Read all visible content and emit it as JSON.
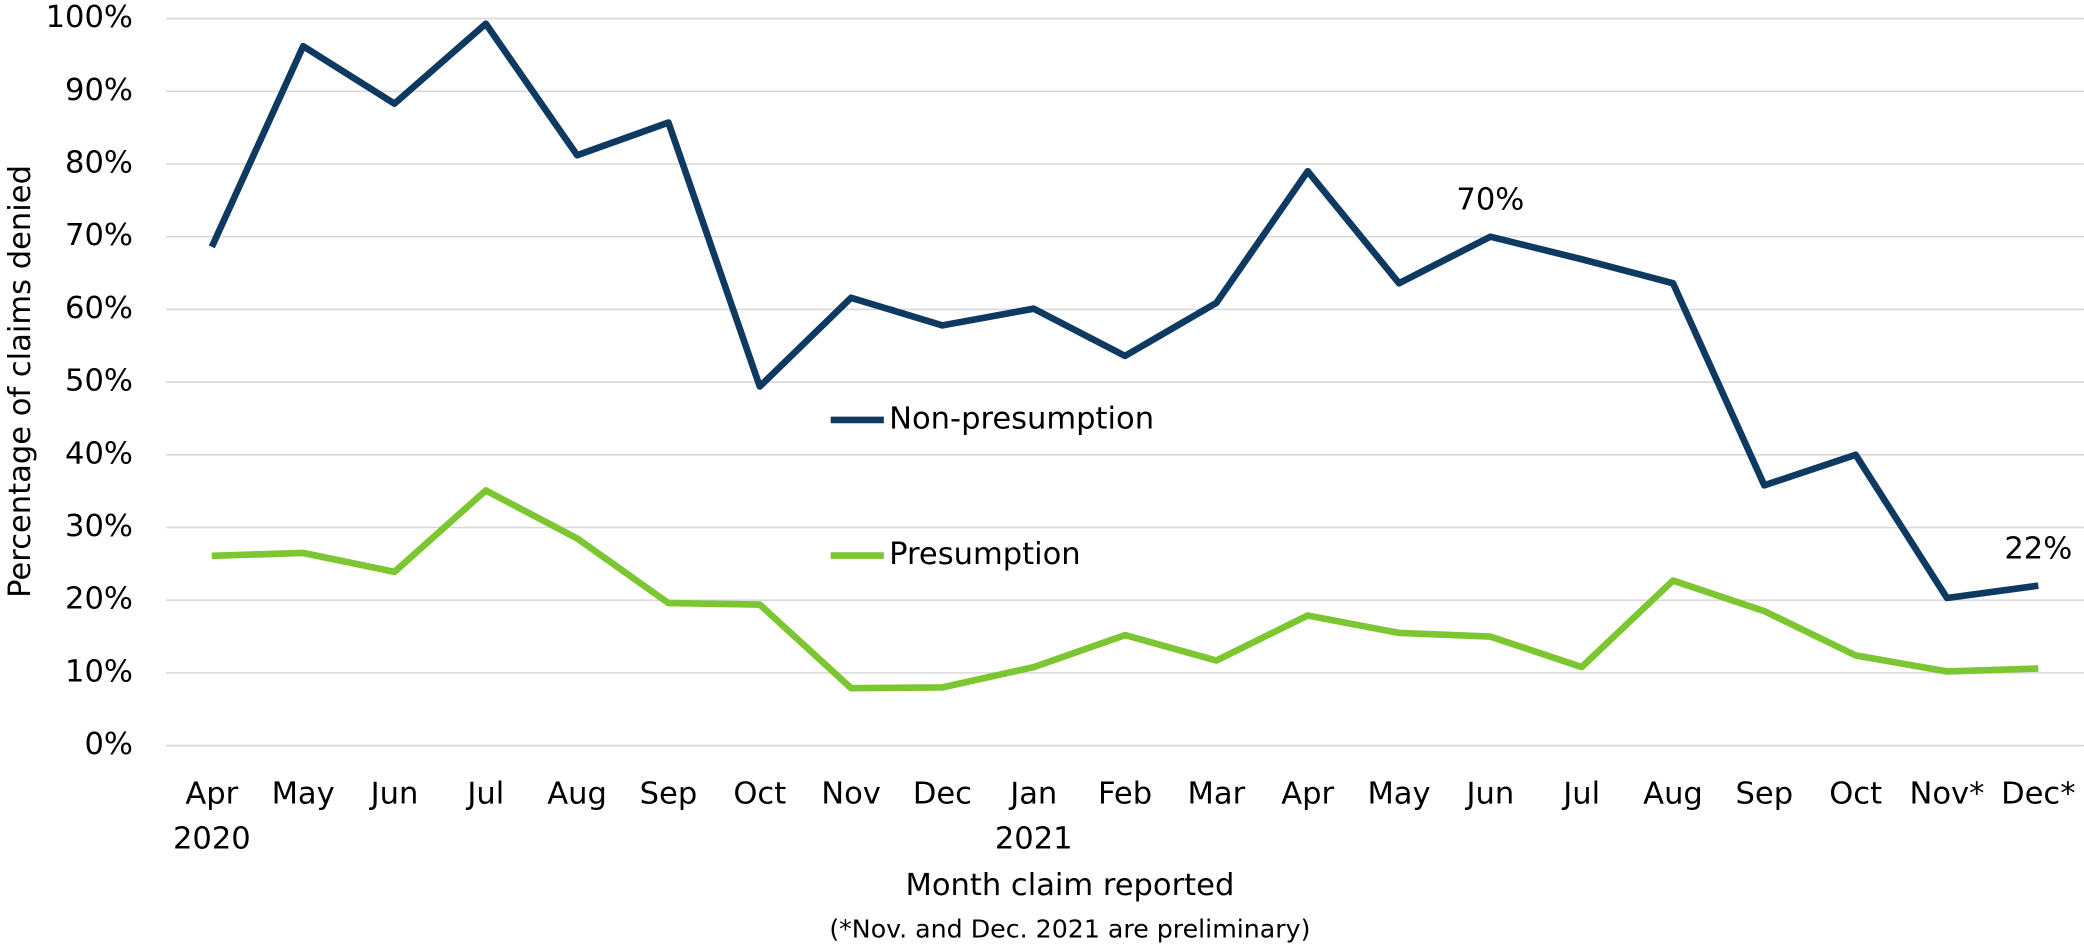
{
  "chart_data": {
    "type": "line",
    "x_label": "Month claim reported",
    "x_note": "(*Nov. and Dec. 2021 are preliminary)",
    "y_label": "Percentage of claims denied",
    "categories": [
      "Apr",
      "May",
      "Jun",
      "Jul",
      "Aug",
      "Sep",
      "Oct",
      "Nov",
      "Dec",
      "Jan",
      "Feb",
      "Mar",
      "Apr",
      "May",
      "Jun",
      "Jul",
      "Aug",
      "Sep",
      "Oct",
      "Nov*",
      "Dec*"
    ],
    "year_labels": [
      "2020",
      null,
      null,
      null,
      null,
      null,
      null,
      null,
      null,
      "2021",
      null,
      null,
      null,
      null,
      null,
      null,
      null,
      null,
      null,
      null,
      null
    ],
    "series": [
      {
        "name": "Non-presumption",
        "color": "#0e3a62",
        "values": [
          68.6,
          96.2,
          88.3,
          99.3,
          81.2,
          85.7,
          49.4,
          61.6,
          57.8,
          60.1,
          53.6,
          60.9,
          79,
          63.6,
          70,
          66.9,
          63.6,
          35.8,
          40,
          20.3,
          22
        ],
        "value_labels": [
          null,
          null,
          null,
          null,
          null,
          null,
          null,
          null,
          null,
          null,
          null,
          null,
          null,
          null,
          "70%",
          null,
          null,
          null,
          null,
          null,
          "22%"
        ]
      },
      {
        "name": "Presumption",
        "color": "#7cc631",
        "values": [
          26.1,
          26.5,
          23.9,
          35.1,
          28.5,
          19.6,
          19.4,
          7.9,
          8,
          10.8,
          15.2,
          11.7,
          17.9,
          15.5,
          15,
          10.8,
          22.7,
          18.5,
          12.4,
          10.2,
          10.6
        ]
      }
    ],
    "ylim": [
      0,
      100
    ],
    "yticks": [
      {
        "value": 0,
        "label": "0%"
      },
      {
        "value": 10,
        "label": "10%"
      },
      {
        "value": 20,
        "label": "20%"
      },
      {
        "value": 30,
        "label": "30%"
      },
      {
        "value": 40,
        "label": "40%"
      },
      {
        "value": 50,
        "label": "50%"
      },
      {
        "value": 60,
        "label": "60%"
      },
      {
        "value": 70,
        "label": "70%"
      },
      {
        "value": 80,
        "label": "80%"
      },
      {
        "value": 90,
        "label": "90%"
      },
      {
        "value": 100,
        "label": "100%"
      }
    ],
    "grid": true,
    "legend": "center"
  }
}
